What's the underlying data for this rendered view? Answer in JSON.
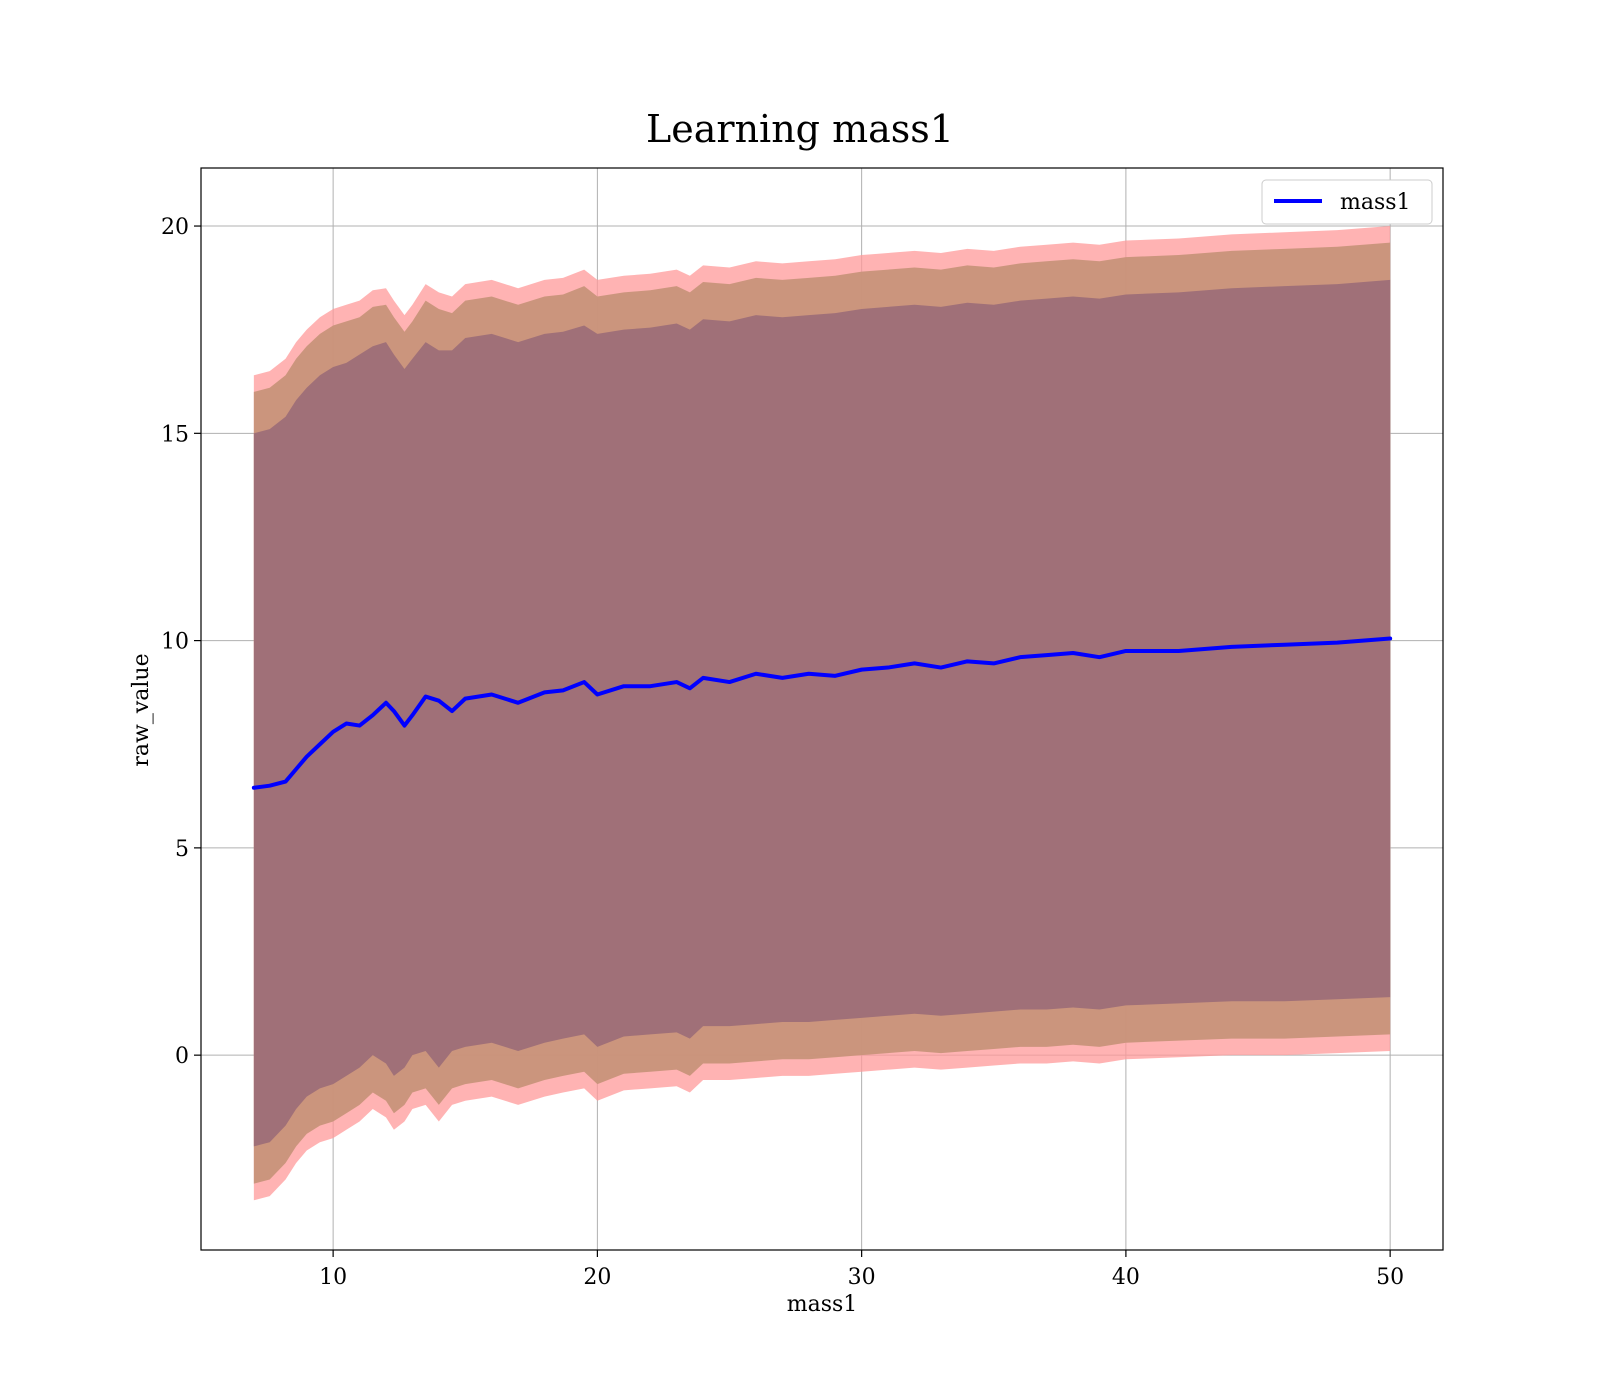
{
  "chart_data": {
    "type": "area",
    "title": "Learning mass1",
    "xlabel": "mass1",
    "ylabel": "raw_value",
    "xlim": [
      5,
      52
    ],
    "ylim": [
      -4.7,
      21.4
    ],
    "xticks": [
      10,
      20,
      30,
      40,
      50
    ],
    "yticks": [
      0,
      5,
      10,
      15,
      20
    ],
    "grid": true,
    "legend": {
      "position": "top-right",
      "entries": [
        "mass1"
      ]
    },
    "colors": {
      "line": "#0000ff",
      "band_outer": "#ff9999",
      "band_middle": "#c8947a",
      "band_inner": "#a07078",
      "grid": "#b0b0b0"
    },
    "x": [
      7,
      7.6,
      8.2,
      8.6,
      9,
      9.5,
      10,
      10.5,
      11,
      11.5,
      12,
      12.3,
      12.7,
      13,
      13.5,
      14,
      14.5,
      15,
      16,
      17,
      18,
      18.7,
      19.5,
      20,
      21,
      22,
      23,
      23.5,
      24,
      25,
      26,
      27,
      28,
      29,
      30,
      31,
      32,
      33,
      34,
      35,
      36,
      37,
      38,
      39,
      40,
      42,
      44,
      46,
      48,
      50
    ],
    "series": [
      {
        "name": "mass1",
        "values": [
          6.45,
          6.5,
          6.6,
          6.9,
          7.2,
          7.5,
          7.8,
          8.0,
          7.95,
          8.2,
          8.5,
          8.3,
          7.95,
          8.2,
          8.65,
          8.55,
          8.3,
          8.6,
          8.7,
          8.5,
          8.75,
          8.8,
          9.0,
          8.7,
          8.9,
          8.9,
          9.0,
          8.85,
          9.1,
          9.0,
          9.2,
          9.1,
          9.2,
          9.15,
          9.3,
          9.35,
          9.45,
          9.35,
          9.5,
          9.45,
          9.6,
          9.65,
          9.7,
          9.6,
          9.75,
          9.75,
          9.85,
          9.9,
          9.95,
          10.05
        ]
      },
      {
        "name": "",
        "values_low": [
          -3.5,
          -3.4,
          -3.0,
          -2.6,
          -2.3,
          -2.1,
          -2.0,
          -1.8,
          -1.6,
          -1.3,
          -1.5,
          -1.8,
          -1.6,
          -1.3,
          -1.2,
          -1.6,
          -1.2,
          -1.1,
          -1.0,
          -1.2,
          -1.0,
          -0.9,
          -0.8,
          -1.1,
          -0.85,
          -0.8,
          -0.75,
          -0.9,
          -0.6,
          -0.6,
          -0.55,
          -0.5,
          -0.5,
          -0.45,
          -0.4,
          -0.35,
          -0.3,
          -0.35,
          -0.3,
          -0.25,
          -0.2,
          -0.2,
          -0.15,
          -0.2,
          -0.1,
          -0.05,
          0.0,
          0.0,
          0.05,
          0.1
        ],
        "values_high": [
          16.4,
          16.5,
          16.8,
          17.2,
          17.5,
          17.8,
          18.0,
          18.1,
          18.2,
          18.45,
          18.5,
          18.2,
          17.85,
          18.1,
          18.6,
          18.4,
          18.3,
          18.6,
          18.7,
          18.5,
          18.7,
          18.75,
          18.95,
          18.7,
          18.8,
          18.85,
          18.95,
          18.8,
          19.05,
          19.0,
          19.15,
          19.1,
          19.15,
          19.2,
          19.3,
          19.35,
          19.4,
          19.35,
          19.45,
          19.4,
          19.5,
          19.55,
          19.6,
          19.55,
          19.65,
          19.7,
          19.8,
          19.85,
          19.9,
          20.0
        ]
      },
      {
        "name": "",
        "values_low": [
          -3.1,
          -3.0,
          -2.6,
          -2.2,
          -1.9,
          -1.7,
          -1.6,
          -1.4,
          -1.2,
          -0.9,
          -1.1,
          -1.4,
          -1.2,
          -0.9,
          -0.8,
          -1.2,
          -0.8,
          -0.7,
          -0.6,
          -0.8,
          -0.6,
          -0.5,
          -0.4,
          -0.7,
          -0.45,
          -0.4,
          -0.35,
          -0.5,
          -0.2,
          -0.2,
          -0.15,
          -0.1,
          -0.1,
          -0.05,
          0.0,
          0.05,
          0.1,
          0.05,
          0.1,
          0.15,
          0.2,
          0.2,
          0.25,
          0.2,
          0.3,
          0.35,
          0.4,
          0.4,
          0.45,
          0.5
        ],
        "values_high": [
          16.0,
          16.1,
          16.4,
          16.8,
          17.1,
          17.4,
          17.6,
          17.7,
          17.8,
          18.05,
          18.1,
          17.8,
          17.45,
          17.7,
          18.2,
          18.0,
          17.9,
          18.2,
          18.3,
          18.1,
          18.3,
          18.35,
          18.55,
          18.3,
          18.4,
          18.45,
          18.55,
          18.4,
          18.65,
          18.6,
          18.75,
          18.7,
          18.75,
          18.8,
          18.9,
          18.95,
          19.0,
          18.95,
          19.05,
          19.0,
          19.1,
          19.15,
          19.2,
          19.15,
          19.25,
          19.3,
          19.4,
          19.45,
          19.5,
          19.6
        ]
      },
      {
        "name": "",
        "values_low": [
          -2.2,
          -2.1,
          -1.7,
          -1.3,
          -1.0,
          -0.8,
          -0.7,
          -0.5,
          -0.3,
          0.0,
          -0.2,
          -0.5,
          -0.3,
          0.0,
          0.1,
          -0.3,
          0.1,
          0.2,
          0.3,
          0.1,
          0.3,
          0.4,
          0.5,
          0.2,
          0.45,
          0.5,
          0.55,
          0.4,
          0.7,
          0.7,
          0.75,
          0.8,
          0.8,
          0.85,
          0.9,
          0.95,
          1.0,
          0.95,
          1.0,
          1.05,
          1.1,
          1.1,
          1.15,
          1.1,
          1.2,
          1.25,
          1.3,
          1.3,
          1.35,
          1.4
        ],
        "values_high": [
          15.0,
          15.1,
          15.4,
          15.8,
          16.1,
          16.4,
          16.6,
          16.7,
          16.9,
          17.1,
          17.2,
          16.9,
          16.55,
          16.8,
          17.2,
          17.0,
          17.0,
          17.3,
          17.4,
          17.2,
          17.4,
          17.45,
          17.6,
          17.4,
          17.5,
          17.55,
          17.65,
          17.5,
          17.75,
          17.7,
          17.85,
          17.8,
          17.85,
          17.9,
          18.0,
          18.05,
          18.1,
          18.05,
          18.15,
          18.1,
          18.2,
          18.25,
          18.3,
          18.25,
          18.35,
          18.4,
          18.5,
          18.55,
          18.6,
          18.7
        ]
      }
    ]
  }
}
